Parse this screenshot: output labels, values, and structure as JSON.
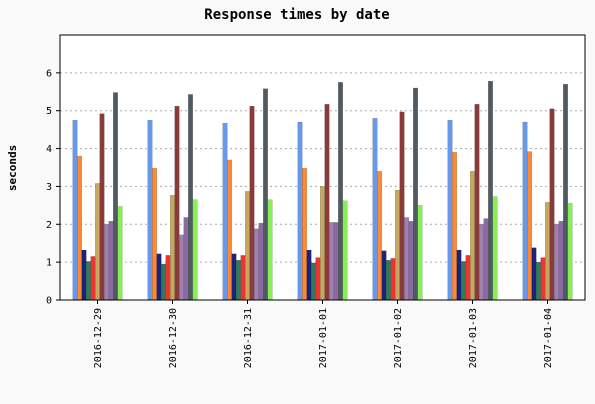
{
  "chart_data": {
    "type": "bar",
    "title": "Response times by date",
    "ylabel": "seconds",
    "xlabel": "",
    "ylim": [
      0,
      7
    ],
    "yticks": [
      0,
      1,
      2,
      3,
      4,
      5,
      6
    ],
    "grid": true,
    "categories": [
      "2016-12-29",
      "2016-12-30",
      "2016-12-31",
      "2017-01-01",
      "2017-01-02",
      "2017-01-03",
      "2017-01-04"
    ],
    "series": [
      {
        "color": "#6699ee",
        "values": [
          4.75,
          4.75,
          4.67,
          4.7,
          4.8,
          4.75,
          4.7
        ]
      },
      {
        "color": "#ff8833",
        "values": [
          3.8,
          3.48,
          3.7,
          3.48,
          3.4,
          3.9,
          3.92
        ]
      },
      {
        "color": "#1a237e",
        "values": [
          1.32,
          1.22,
          1.22,
          1.32,
          1.3,
          1.32,
          1.38
        ]
      },
      {
        "color": "#2e7d5a",
        "values": [
          1.02,
          0.95,
          1.05,
          0.98,
          1.05,
          1.02,
          1.0
        ]
      },
      {
        "color": "#ee3333",
        "values": [
          1.15,
          1.18,
          1.18,
          1.12,
          1.1,
          1.18,
          1.12
        ]
      },
      {
        "color": "#c4a860",
        "values": [
          3.08,
          2.77,
          2.87,
          3.0,
          2.9,
          3.4,
          2.58
        ]
      },
      {
        "color": "#8b3a3a",
        "values": [
          4.92,
          5.12,
          5.12,
          5.17,
          4.97,
          5.17,
          5.05
        ]
      },
      {
        "color": "#a080b0",
        "values": [
          2.0,
          1.72,
          1.88,
          2.05,
          2.18,
          2.0,
          2.0
        ]
      },
      {
        "color": "#8a6aa0",
        "values": [
          2.08,
          2.18,
          2.03,
          2.05,
          2.08,
          2.15,
          2.08
        ]
      },
      {
        "color": "#505a62",
        "values": [
          5.48,
          5.43,
          5.58,
          5.75,
          5.6,
          5.78,
          5.7
        ]
      },
      {
        "color": "#88ee55",
        "values": [
          2.47,
          2.65,
          2.65,
          2.62,
          2.5,
          2.73,
          2.55
        ]
      }
    ]
  }
}
